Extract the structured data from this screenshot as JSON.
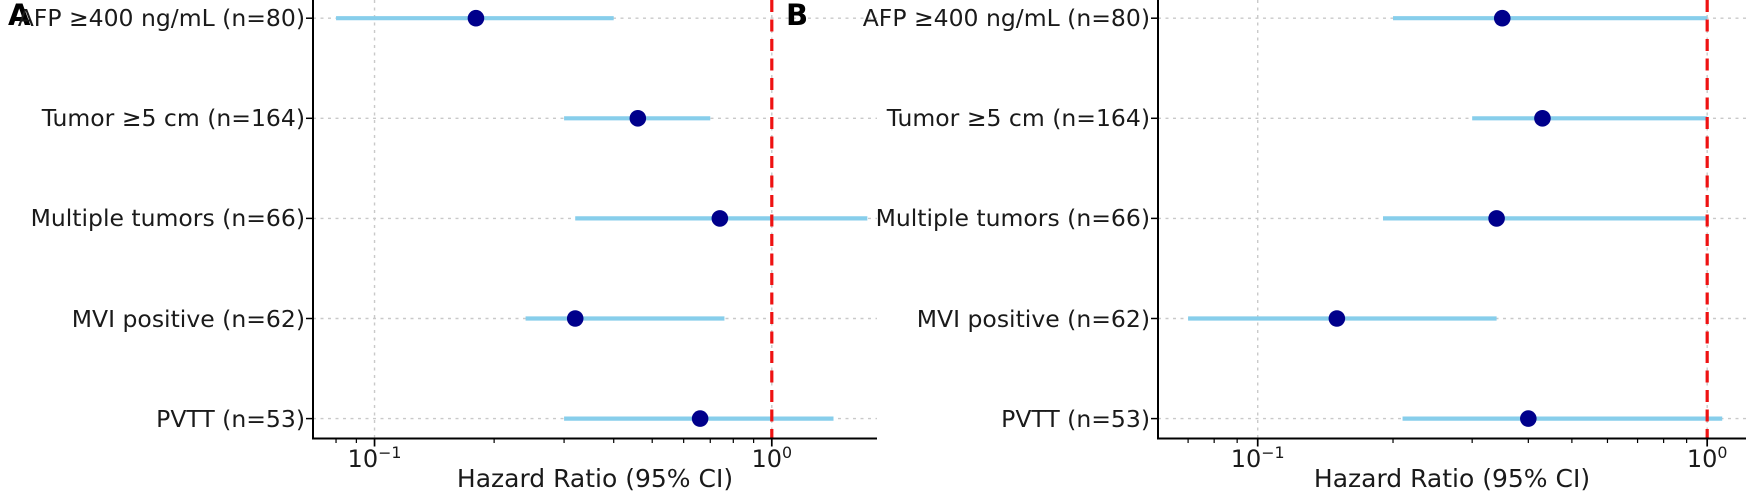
{
  "figure": {
    "xlabel": "Hazard Ratio (95% CI)",
    "x_ticks": [
      {
        "base": "10",
        "exp": "−1",
        "value": 0.1
      },
      {
        "base": "10",
        "exp": "0",
        "value": 1.0
      }
    ],
    "reference_line_value": 1.0,
    "colors": {
      "ci_line": "#87ceeb",
      "point": "#00008b",
      "reference_line": "#ee1212",
      "grid": "#c9c9c9",
      "axis": "#000000",
      "text": "#1a1a1a"
    }
  },
  "chart_data": [
    {
      "type": "scatter",
      "subtype": "forest-plot",
      "panel_label": "A",
      "xlabel": "Hazard Ratio (95% CI)",
      "xscale": "log",
      "xlim": [
        0.07,
        1.84
      ],
      "grid": true,
      "reference_line_x": 1.0,
      "categories": [
        "AFP ≥400 ng/mL (n=80)",
        "Tumor ≥5 cm (n=164)",
        "Multiple tumors (n=66)",
        "MVI positive (n=62)",
        "PVTT (n=53)"
      ],
      "series": [
        {
          "name": "Hazard Ratio (95% CI)",
          "hr": [
            0.18,
            0.46,
            0.74,
            0.32,
            0.66
          ],
          "ci_low": [
            0.08,
            0.3,
            0.32,
            0.24,
            0.3
          ],
          "ci_high": [
            0.4,
            0.7,
            1.74,
            0.76,
            1.43
          ]
        }
      ]
    },
    {
      "type": "scatter",
      "subtype": "forest-plot",
      "panel_label": "B",
      "xlabel": "Hazard Ratio (95% CI)",
      "xscale": "log",
      "xlim": [
        0.06,
        1.22
      ],
      "grid": true,
      "reference_line_x": 1.0,
      "categories": [
        "AFP ≥400 ng/mL (n=80)",
        "Tumor ≥5 cm (n=164)",
        "Multiple tumors (n=66)",
        "MVI positive (n=62)",
        "PVTT (n=53)"
      ],
      "series": [
        {
          "name": "Hazard Ratio (95% CI)",
          "hr": [
            0.35,
            0.43,
            0.34,
            0.15,
            0.4
          ],
          "ci_low": [
            0.2,
            0.3,
            0.19,
            0.07,
            0.21
          ],
          "ci_high": [
            1.0,
            1.0,
            1.0,
            0.34,
            1.08
          ]
        }
      ]
    }
  ]
}
